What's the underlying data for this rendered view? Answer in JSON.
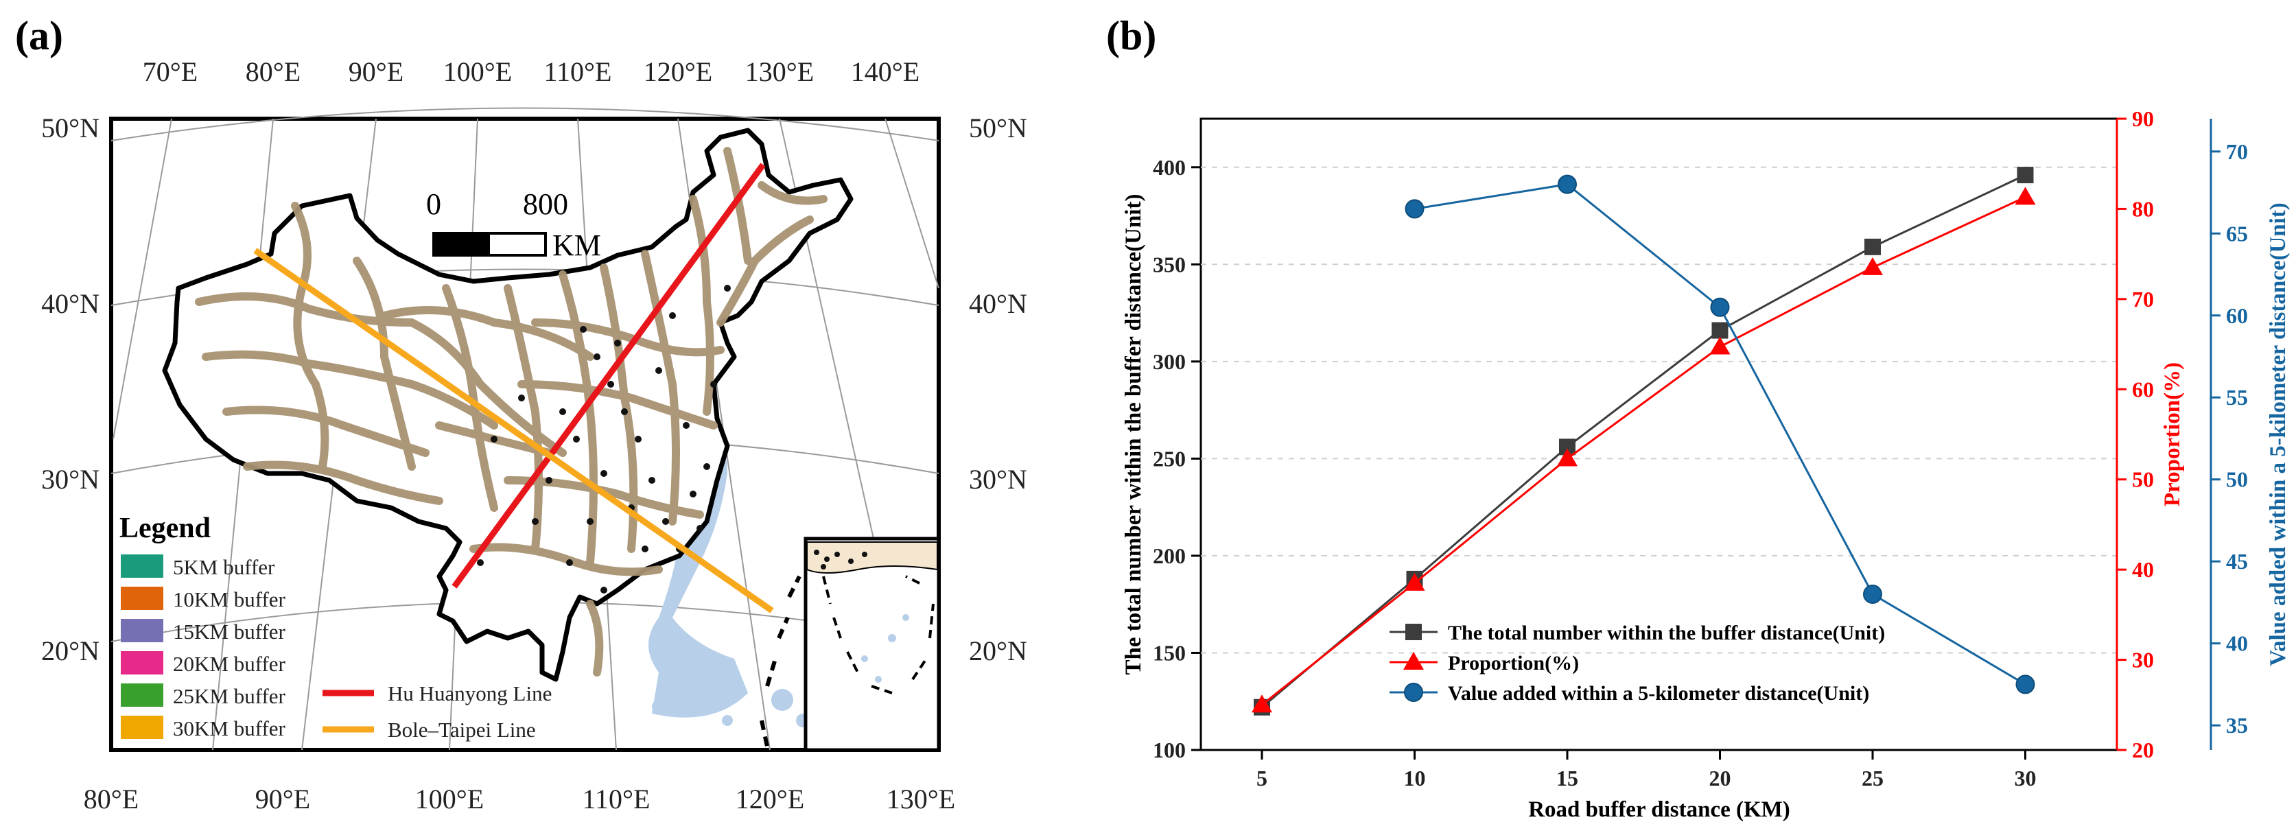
{
  "panel_a": {
    "label": "(a)",
    "top_lon_labels": [
      "70°E",
      "80°E",
      "90°E",
      "100°E",
      "110°E",
      "120°E",
      "130°E",
      "140°E"
    ],
    "bottom_lon_labels": [
      "80°E",
      "90°E",
      "100°E",
      "110°E",
      "120°E",
      "130°E"
    ],
    "left_lat_labels": [
      "50°N",
      "40°N",
      "30°N",
      "20°N"
    ],
    "right_lat_labels": [
      "50°N",
      "40°N",
      "30°N",
      "20°N"
    ],
    "scale_bar": {
      "start": "0",
      "end": "800",
      "unit": "KM"
    },
    "legend": {
      "title": "Legend",
      "buffers": [
        {
          "label": "5KM buffer",
          "color": "#1a9c7c"
        },
        {
          "label": "10KM buffer",
          "color": "#e0640a"
        },
        {
          "label": "15KM buffer",
          "color": "#7570b3"
        },
        {
          "label": "20KM buffer",
          "color": "#e7298a"
        },
        {
          "label": "25KM buffer",
          "color": "#3aa02d"
        },
        {
          "label": "30KM buffer",
          "color": "#f0a800"
        }
      ],
      "lines": [
        {
          "label": "Hu Huanyong Line",
          "color": "#e8151b"
        },
        {
          "label": "Bole–Taipei Line",
          "color": "#f7a81c"
        }
      ]
    }
  },
  "panel_b": {
    "label": "(b)",
    "colors": {
      "series1": "#3c3c3c",
      "series2": "#ff0000",
      "series3": "#1565a0"
    },
    "chart_data": {
      "type": "line",
      "xlabel": "Road buffer distance (KM)",
      "categories": [
        5,
        10,
        15,
        20,
        25,
        30
      ],
      "y_left": {
        "label": "The total number within the buffer distance(Unit)",
        "ylim": [
          100,
          425
        ],
        "ticks": [
          100,
          150,
          200,
          250,
          300,
          350,
          400
        ]
      },
      "y_right1": {
        "label": "Proportion(%)",
        "ylim": [
          20,
          90
        ],
        "ticks": [
          20,
          30,
          40,
          50,
          60,
          70,
          80,
          90
        ]
      },
      "y_right2": {
        "label": "Value added within a 5-kilometer distance(Unit)",
        "ylim": [
          33.5,
          72
        ],
        "ticks": [
          35,
          40,
          45,
          50,
          55,
          60,
          65,
          70
        ]
      },
      "series": [
        {
          "name": "The total number within the buffer distance(Unit)",
          "axis": "left",
          "marker": "square",
          "x": [
            5,
            10,
            15,
            20,
            25,
            30
          ],
          "values": [
            122,
            188,
            256,
            316,
            359,
            396
          ]
        },
        {
          "name": "Proportion(%)",
          "axis": "right1",
          "marker": "triangle",
          "x": [
            5,
            10,
            15,
            20,
            25,
            30
          ],
          "values": [
            25.0,
            38.5,
            52.3,
            64.7,
            73.5,
            81.3
          ]
        },
        {
          "name": "Value added within a 5-kilometer distance(Unit)",
          "axis": "right2",
          "marker": "circle",
          "x": [
            10,
            15,
            20,
            25,
            30
          ],
          "values": [
            66.5,
            68.0,
            60.5,
            43.0,
            37.5
          ]
        }
      ]
    }
  }
}
